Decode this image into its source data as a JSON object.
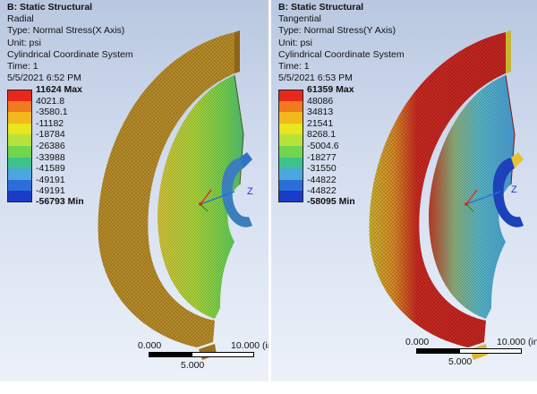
{
  "left": {
    "title": "B: Static Structural",
    "result_name": "Radial",
    "type": "Type: Normal Stress(X Axis)",
    "unit": "Unit: psi",
    "coord": "Cylindrical Coordinate System",
    "time": "Time: 1",
    "date": "5/5/2021 6:52 PM",
    "legend": [
      "11624 Max",
      "4021.8",
      "-3580.1",
      "-11182",
      "-18784",
      "-26386",
      "-33988",
      "-41589",
      "-49191",
      "-56793 Min"
    ],
    "scale": {
      "zero": "0.000",
      "ten": "10.000 (in)",
      "five": "5.000"
    },
    "axis_label": "Z"
  },
  "right": {
    "title": "B: Static Structural",
    "result_name": "Tangential",
    "type": "Type: Normal Stress(Y Axis)",
    "unit": "Unit: psi",
    "coord": "Cylindrical Coordinate System",
    "time": "Time: 1",
    "date": "5/5/2021 6:53 PM",
    "legend": [
      "61359 Max",
      "48086",
      "34813",
      "21541",
      "8268.1",
      "-5004.6",
      "-18277",
      "-31550",
      "-44822",
      "-58095 Min"
    ],
    "scale": {
      "zero": "0.000",
      "ten": "10.000 (in)",
      "five": "5.000"
    },
    "axis_label": "Z"
  },
  "colors": {
    "legend_bands": [
      "#e8281e",
      "#f07a1e",
      "#f2b81e",
      "#e8e61e",
      "#b7e23a",
      "#6fd64e",
      "#3dc28e",
      "#4aa8dc",
      "#2c6ed8",
      "#1a3cc8"
    ],
    "left_rim": "#b98a2a",
    "left_rim_dark": "#8c6518",
    "left_web": "#8fcf40",
    "right_rim": "#c62820",
    "right_rim_light": "#d8b830",
    "right_web": "#56b4c8",
    "hub": "#2c6ed8"
  }
}
